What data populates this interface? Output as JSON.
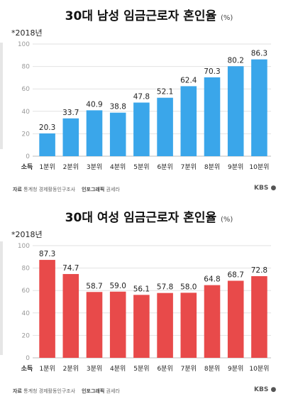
{
  "charts": [
    {
      "title": "30대 남성 임금근로자 혼인율",
      "unit": "(%)",
      "year_note": "*2018년",
      "source_label": "자료",
      "source": "통계청 경제활동인구조사",
      "credit_label": "인포그래픽",
      "credit": "권세라",
      "logo": "KBS",
      "color": "#3aa6ea",
      "chart_data": {
        "type": "bar",
        "x_axis_label": "소득",
        "categories": [
          "1분위",
          "2분위",
          "3분위",
          "4분위",
          "5분위",
          "6분위",
          "7분위",
          "8분위",
          "9분위",
          "10분위"
        ],
        "values": [
          20.3,
          33.7,
          40.9,
          38.8,
          47.8,
          52.1,
          62.4,
          70.3,
          80.2,
          86.3
        ],
        "data_labels": [
          "20.3",
          "33.7",
          "40.9",
          "38.8",
          "47.8",
          "52.1",
          "62.4",
          "70.3",
          "80.2",
          "86.3"
        ],
        "ylim": [
          0,
          100
        ],
        "yticks": [
          "0",
          "20",
          "40",
          "60",
          "80",
          "100"
        ],
        "grid": true
      }
    },
    {
      "title": "30대 여성 임금근로자 혼인율",
      "unit": "(%)",
      "year_note": "*2018년",
      "source_label": "자료",
      "source": "통계청 경제활동인구조사",
      "credit_label": "인포그래픽",
      "credit": "권세라",
      "logo": "KBS",
      "color": "#e84a4a",
      "chart_data": {
        "type": "bar",
        "x_axis_label": "소득",
        "categories": [
          "1분위",
          "2분위",
          "3분위",
          "4분위",
          "5분위",
          "6분위",
          "7분위",
          "8분위",
          "9분위",
          "10분위"
        ],
        "values": [
          87.3,
          74.7,
          58.7,
          59.0,
          56.1,
          57.8,
          58.0,
          64.8,
          68.7,
          72.8
        ],
        "data_labels": [
          "87.3",
          "74.7",
          "58.7",
          "59.0",
          "56.1",
          "57.8",
          "58.0",
          "64.8",
          "68.7",
          "72.8"
        ],
        "ylim": [
          0,
          100
        ],
        "yticks": [
          "0",
          "20",
          "40",
          "60",
          "80",
          "100"
        ],
        "grid": true
      }
    }
  ]
}
